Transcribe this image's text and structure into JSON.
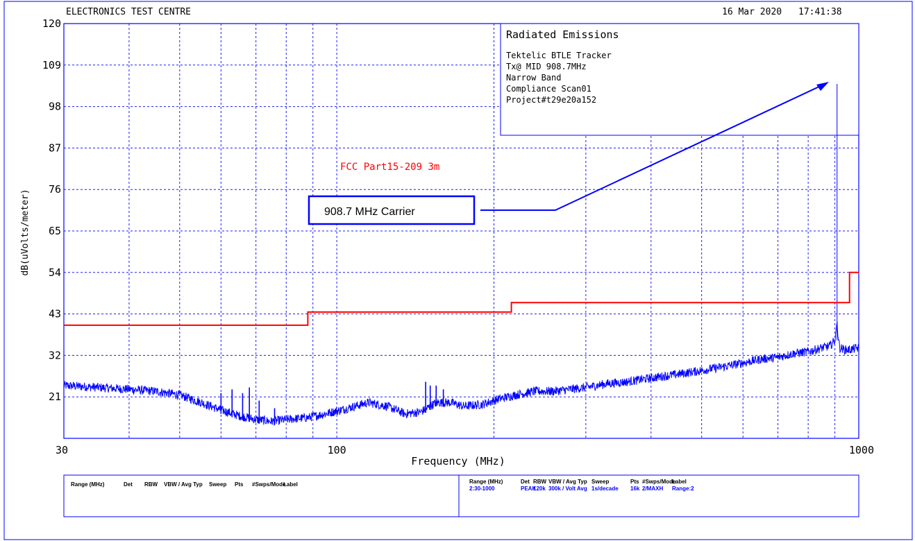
{
  "header": {
    "lab_name": "ELECTRONICS TEST CENTRE",
    "date": "16 Mar 2020",
    "time": "17:41:38"
  },
  "info_box": {
    "title": "Radiated Emissions",
    "lines": [
      "Tektelic BTLE Tracker",
      "Tx@ MID 908.7MHz",
      "Narrow Band",
      "Compliance Scan01",
      "Project#t29e20a152"
    ]
  },
  "annotations": {
    "limit_label": "FCC Part15-209 3m",
    "carrier_label": "908.7 MHz Carrier"
  },
  "colors": {
    "grid": "#1a1aff",
    "trace": "#0000ff",
    "limit": "#ff0000",
    "text": "#000000",
    "frame": "#0000ff"
  },
  "footer": {
    "left_headers": [
      "Range (MHz)",
      "Det",
      "RBW",
      "VBW / Avg Typ",
      "Sweep",
      "Pts",
      "#Swps/Mode",
      "Label"
    ],
    "right_headers": [
      "Range (MHz)",
      "Det",
      "RBW",
      "VBW / Avg Typ",
      "Sweep",
      "Pts",
      "#Swps/Mode",
      "Label"
    ],
    "right_values": [
      "2:30-1000",
      "PEAK",
      "120k",
      "300k / Volt Avg",
      "1s/decade",
      "16k",
      "2/MAXH",
      "Range:2"
    ]
  },
  "chart_data": {
    "type": "line",
    "title": "",
    "xlabel": "Frequency (MHz)",
    "ylabel": "dB(uVolts/meter)",
    "xscale": "log",
    "xlim": [
      30,
      1000
    ],
    "ylim": [
      10,
      120
    ],
    "x_tick_labels": [
      "30",
      "100",
      "1000"
    ],
    "y_tick_labels": [
      "120",
      "109",
      "98",
      "87",
      "76",
      "65",
      "54",
      "43",
      "32",
      "21"
    ],
    "y_ticks": [
      120,
      109,
      98,
      87,
      76,
      65,
      54,
      43,
      32,
      21
    ],
    "grid": true,
    "series": [
      {
        "name": "FCC Part15-209 3m",
        "kind": "limit",
        "x": [
          30,
          88,
          88,
          216,
          216,
          960,
          960,
          1000
        ],
        "y": [
          40,
          40,
          43.5,
          43.5,
          46,
          46,
          54,
          54
        ]
      },
      {
        "kind": "measurement",
        "x": [
          30,
          35,
          40,
          45,
          50,
          55,
          60,
          65,
          70,
          75,
          80,
          88,
          95,
          105,
          115,
          125,
          135,
          145,
          155,
          165,
          175,
          190,
          205,
          220,
          240,
          260,
          280,
          300,
          330,
          360,
          400,
          450,
          500,
          550,
          600,
          650,
          700,
          750,
          800,
          850,
          880,
          900,
          905,
          908.7,
          912,
          920,
          940,
          960,
          1000
        ],
        "y": [
          24,
          23.5,
          23,
          22.5,
          21.5,
          19.5,
          17.5,
          16,
          15,
          14.5,
          15,
          15.5,
          16.5,
          18,
          19.5,
          18.5,
          16.5,
          17,
          19.5,
          19.5,
          18.5,
          19,
          20.5,
          21.5,
          22.5,
          22.5,
          23,
          23.5,
          24.5,
          25,
          26,
          27,
          28,
          29,
          30,
          31,
          31.5,
          32.5,
          33,
          34,
          34.5,
          36,
          39,
          41,
          37,
          34,
          33.5,
          33.5,
          34
        ]
      }
    ],
    "spurs": [
      {
        "x": 60,
        "y": 22
      },
      {
        "x": 63,
        "y": 23
      },
      {
        "x": 66,
        "y": 22
      },
      {
        "x": 68,
        "y": 23.5
      },
      {
        "x": 71,
        "y": 20
      },
      {
        "x": 76,
        "y": 18
      },
      {
        "x": 148,
        "y": 25
      },
      {
        "x": 151,
        "y": 24
      },
      {
        "x": 155,
        "y": 24
      },
      {
        "x": 160,
        "y": 23
      }
    ]
  }
}
